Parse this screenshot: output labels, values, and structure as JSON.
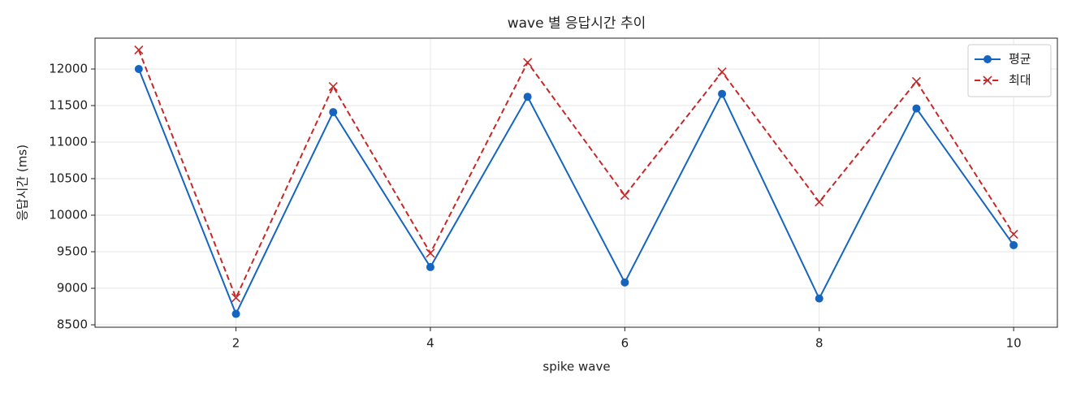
{
  "chart_data": {
    "type": "line",
    "title": "wave 별 응답시간 추이",
    "x_label": "spike wave",
    "y_label": "응답시간 (ms)",
    "x": [
      1,
      2,
      3,
      4,
      5,
      6,
      7,
      8,
      9,
      10
    ],
    "series": [
      {
        "name": "평균",
        "color": "#1565c0",
        "marker": "circle",
        "dash": "solid",
        "values": [
          12000,
          8650,
          11410,
          9290,
          11620,
          9080,
          11660,
          8860,
          11460,
          9590
        ]
      },
      {
        "name": "최대",
        "color": "#c62828",
        "marker": "x",
        "dash": "dashed",
        "values": [
          12260,
          8870,
          11760,
          9480,
          12090,
          10270,
          11960,
          10180,
          11830,
          9740
        ]
      }
    ],
    "xlim": [
      0.55,
      10.45
    ],
    "xticks": [
      2,
      4,
      6,
      8,
      10
    ],
    "ylim": [
      8467,
      12422
    ],
    "yticks": [
      8500,
      9000,
      9500,
      10000,
      10500,
      11000,
      11500,
      12000
    ],
    "grid": true,
    "legend": "upper right"
  }
}
